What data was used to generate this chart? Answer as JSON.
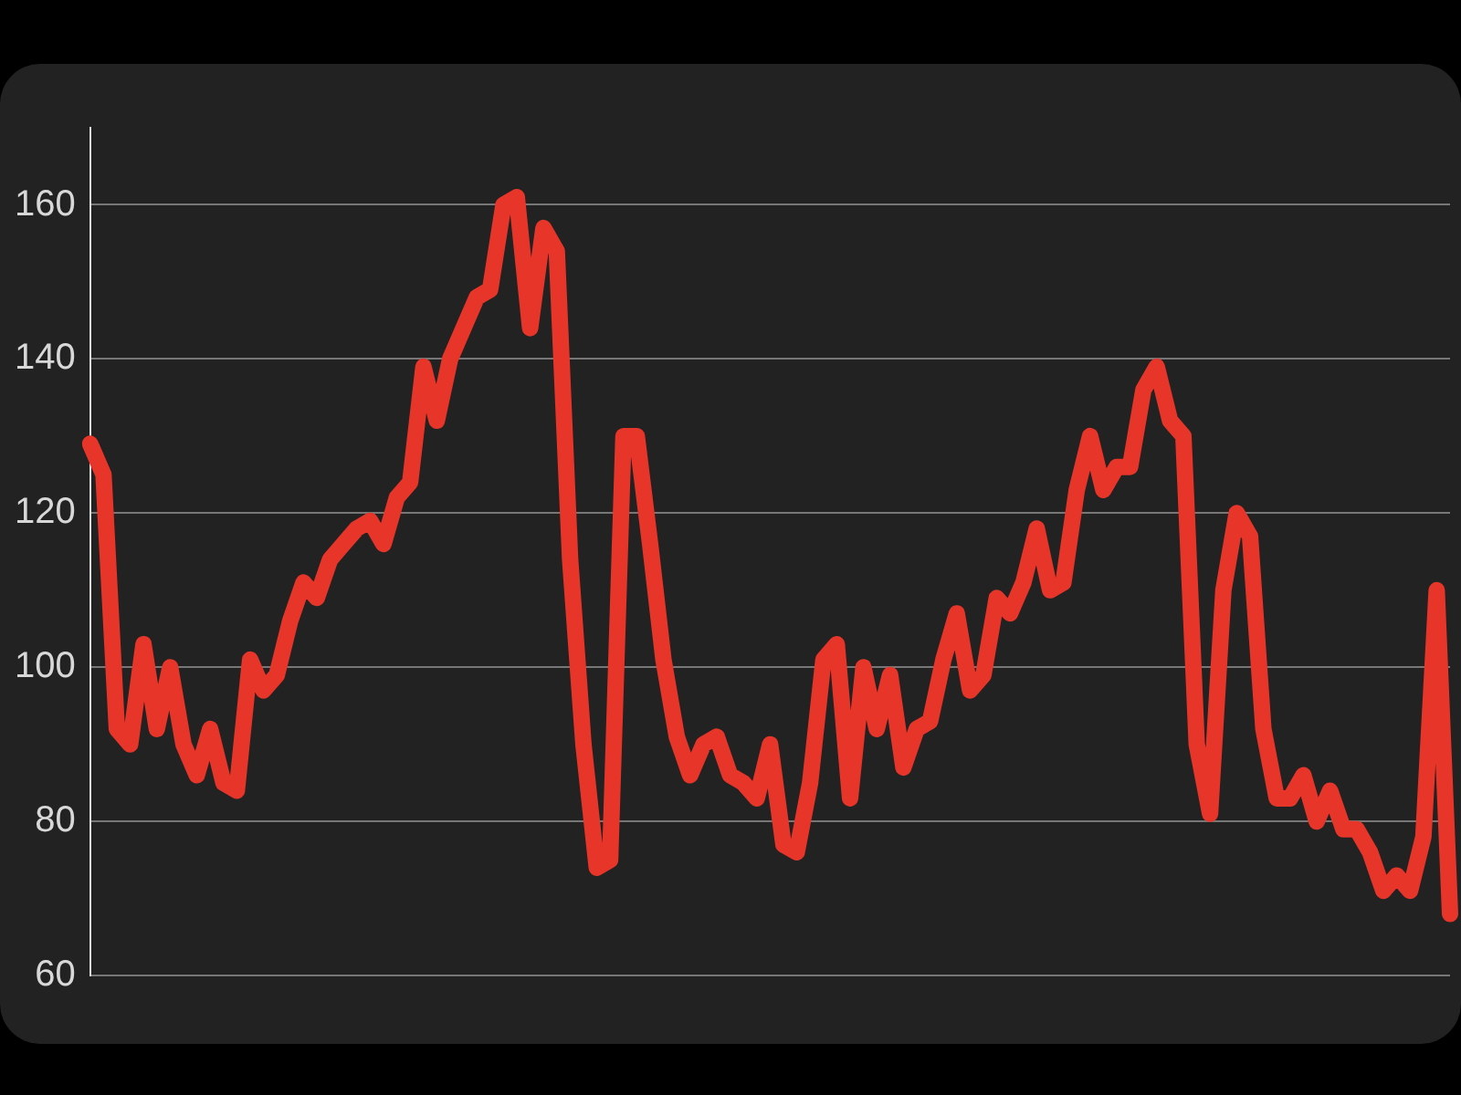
{
  "chart_data": {
    "type": "line",
    "categories": [
      null,
      null,
      null,
      null,
      null,
      null,
      null,
      null,
      null,
      null,
      null,
      null,
      null,
      null,
      null,
      null,
      null,
      null,
      null,
      null,
      null,
      null,
      null,
      null,
      null,
      null,
      null,
      null,
      null,
      null,
      null,
      null,
      null,
      null,
      null,
      null,
      null,
      null,
      null,
      null,
      null,
      null,
      null,
      null,
      null,
      null,
      null,
      null,
      null,
      null,
      null,
      null,
      null,
      null,
      null,
      null,
      null,
      null,
      null,
      null,
      null,
      null,
      null,
      null,
      null,
      null,
      null,
      null,
      null,
      null,
      null,
      null,
      null,
      null,
      null,
      null,
      null,
      null,
      null,
      null,
      null,
      null,
      null,
      null,
      null,
      null,
      null,
      null,
      null,
      null,
      null,
      null,
      null,
      null,
      null,
      null,
      null,
      null,
      null,
      null,
      null,
      null,
      null
    ],
    "series": [
      {
        "color": "#e8352a",
        "values": [
          129,
          125,
          92,
          90,
          103,
          92,
          100,
          90,
          86,
          92,
          85,
          84,
          101,
          97,
          99,
          106,
          111,
          109,
          114,
          116,
          118,
          119,
          116,
          122,
          124,
          139,
          132,
          140,
          144,
          148,
          149,
          160,
          161,
          144,
          157,
          154,
          114,
          90,
          74,
          75,
          130,
          130,
          116,
          101,
          91,
          86,
          90,
          91,
          86,
          85,
          83,
          90,
          77,
          76,
          85,
          101,
          103,
          83,
          100,
          92,
          99,
          87,
          92,
          93,
          101,
          107,
          97,
          99,
          109,
          107,
          111,
          118,
          110,
          111,
          123,
          130,
          123,
          126,
          126,
          136,
          139,
          132,
          130,
          90,
          81,
          110,
          120,
          117,
          92,
          83,
          83,
          86,
          80,
          84,
          79,
          79,
          76,
          71,
          73,
          71,
          78,
          110,
          68
        ]
      }
    ],
    "ylim": [
      60,
      170
    ],
    "yticks": [
      60,
      80,
      100,
      120,
      140,
      160
    ],
    "grid": "y",
    "legend": false,
    "marker": "none",
    "line_style": "solid"
  }
}
